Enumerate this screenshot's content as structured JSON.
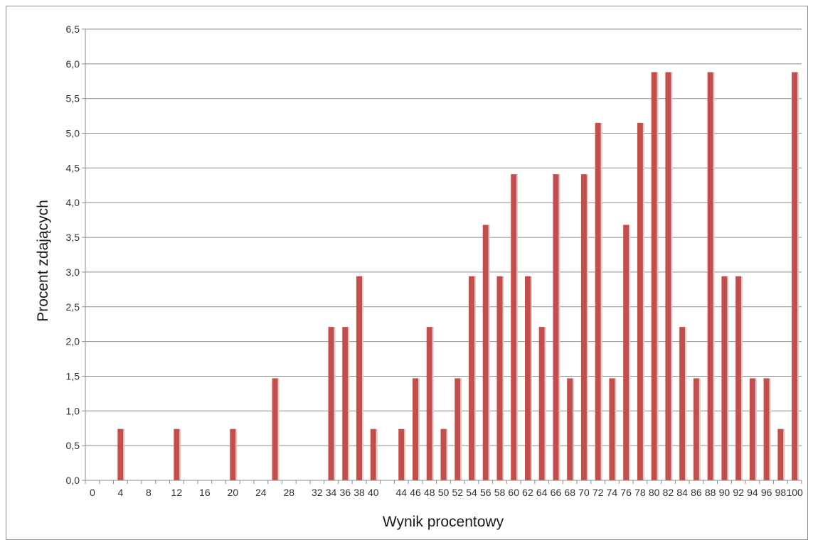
{
  "chart_data": {
    "type": "bar",
    "xlabel": "Wynik procentowy",
    "ylabel": "Procent zdających",
    "xlim": [
      0,
      100
    ],
    "ylim": [
      0,
      6.5
    ],
    "y_ticks": [
      "0,0",
      "0,5",
      "1,0",
      "1,5",
      "2,0",
      "2,5",
      "3,0",
      "3,5",
      "4,0",
      "4,5",
      "5,0",
      "5,5",
      "6,0",
      "6,5"
    ],
    "x_ticks": [
      "0",
      "4",
      "8",
      "12",
      "16",
      "20",
      "24",
      "28",
      "32",
      "36",
      "40",
      "44",
      "48",
      "52",
      "56",
      "60",
      "64",
      "68",
      "72",
      "76",
      "80",
      "84",
      "88",
      "92",
      "96",
      "100"
    ],
    "x_ticks_bottom_row": [
      "34",
      "38",
      "46",
      "50",
      "54",
      "58",
      "62",
      "66",
      "70",
      "74",
      "78",
      "82",
      "86",
      "90",
      "94",
      "98"
    ],
    "grid": "horizontal",
    "bar_color": "#c0504d",
    "x": [
      0,
      2,
      4,
      6,
      8,
      10,
      12,
      14,
      16,
      18,
      20,
      22,
      24,
      26,
      28,
      30,
      32,
      34,
      36,
      38,
      40,
      42,
      44,
      46,
      48,
      50,
      52,
      54,
      56,
      58,
      60,
      62,
      64,
      66,
      68,
      70,
      72,
      74,
      76,
      78,
      80,
      82,
      84,
      86,
      88,
      90,
      92,
      94,
      96,
      98,
      100
    ],
    "values": [
      0,
      0,
      0.74,
      0,
      0,
      0,
      0.74,
      0,
      0,
      0,
      0.74,
      0,
      0,
      1.47,
      0,
      0,
      0,
      2.21,
      2.21,
      2.94,
      0.74,
      0,
      0.74,
      1.47,
      2.21,
      0.74,
      1.47,
      2.94,
      3.68,
      2.94,
      4.41,
      2.94,
      2.21,
      4.41,
      1.47,
      4.41,
      5.15,
      1.47,
      3.68,
      5.15,
      5.88,
      5.88,
      2.21,
      1.47,
      5.88,
      2.94,
      2.94,
      1.47,
      1.47,
      0.74,
      5.88
    ]
  }
}
